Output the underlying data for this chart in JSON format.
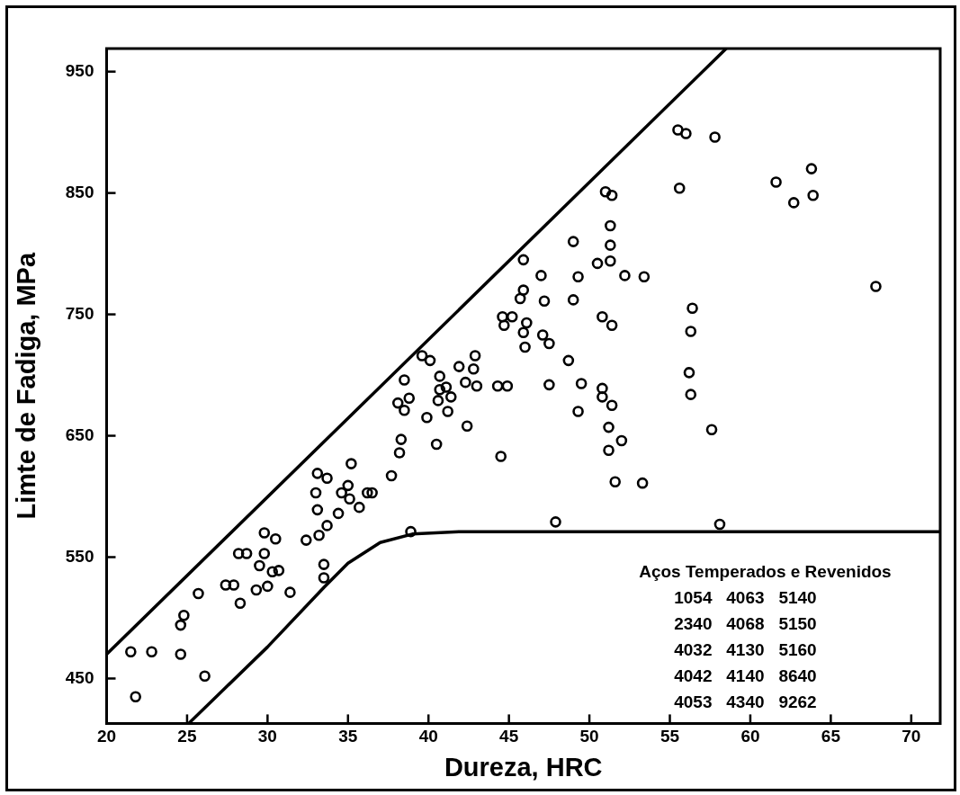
{
  "chart_data": {
    "type": "scatter",
    "xlabel": "Dureza, HRC",
    "ylabel": "Limte de Fadiga, MPa",
    "xlim": [
      20,
      71.8
    ],
    "xticks": [
      20,
      25,
      30,
      35,
      40,
      45,
      50,
      55,
      60,
      65,
      70
    ],
    "ylim": [
      413,
      969
    ],
    "yticks": [
      450,
      550,
      650,
      750,
      850,
      950
    ],
    "grid": false,
    "legend": false,
    "series": [
      {
        "type": "line",
        "color": "#000000",
        "marker": "none",
        "x": [
          20,
          58.5
        ],
        "values": [
          470,
          969
        ]
      },
      {
        "type": "line",
        "color": "#000000",
        "marker": "none",
        "x": [
          25.1,
          30,
          33.5,
          35,
          37,
          39,
          42,
          50,
          71.8
        ],
        "values": [
          413,
          476,
          525,
          545,
          562,
          569,
          571,
          571,
          571
        ]
      },
      {
        "type": "scatter",
        "color": "#000000",
        "marker": "circle",
        "x": [
          21.5,
          22.8,
          24.6,
          21.8,
          26.1,
          24.6,
          24.8,
          25.7,
          27.4,
          27.9,
          28.3,
          28.2,
          28.7,
          29.3,
          30.0,
          29.5,
          29.8,
          30.3,
          30.7,
          31.4,
          29.8,
          30.5,
          32.4,
          33.2,
          33.7,
          33.5,
          33.5,
          34.4,
          35.7,
          35.1,
          34.6,
          35.0,
          36.2,
          36.5,
          33.1,
          33.0,
          33.1,
          33.7,
          35.2,
          37.7,
          38.2,
          38.3,
          39.9,
          38.5,
          38.1,
          38.8,
          38.5,
          38.9,
          45.9,
          49.0,
          51.3,
          50.5,
          51.3,
          52.2,
          53.4,
          47.0,
          49.3,
          45.9,
          45.7,
          47.2,
          49.0,
          44.6,
          45.2,
          44.7,
          46.1,
          45.9,
          47.1,
          47.5,
          46.0,
          50.8,
          51.4,
          48.7,
          39.6,
          40.1,
          42.9,
          42.8,
          41.9,
          40.7,
          40.7,
          41.1,
          41.4,
          40.6,
          42.3,
          43.0,
          44.3,
          44.9,
          47.5,
          49.5,
          50.8,
          50.8,
          51.4,
          49.3,
          51.2,
          52.0,
          51.2,
          51.6,
          53.3,
          41.2,
          42.4,
          40.5,
          44.5,
          47.9,
          55.5,
          56.0,
          57.8,
          55.6,
          61.6,
          63.8,
          62.7,
          63.9,
          67.8,
          51.0,
          51.4,
          51.3,
          56.4,
          56.3,
          56.2,
          56.3,
          57.6,
          58.1
        ],
        "values": [
          472,
          472,
          470,
          435,
          452,
          494,
          502,
          520,
          527,
          527,
          512,
          553,
          553,
          523,
          526,
          543,
          553,
          538,
          539,
          521,
          570,
          565,
          564,
          568,
          576,
          544,
          533,
          586,
          591,
          598,
          603,
          609,
          603,
          603,
          589,
          603,
          619,
          615,
          627,
          617,
          636,
          647,
          665,
          671,
          677,
          681,
          696,
          571,
          795,
          810,
          807,
          792,
          794,
          782,
          781,
          782,
          781,
          770,
          763,
          761,
          762,
          748,
          748,
          741,
          743,
          735,
          733,
          726,
          723,
          748,
          741,
          712,
          716,
          712,
          716,
          705,
          707,
          699,
          688,
          690,
          682,
          679,
          694,
          691,
          691,
          691,
          692,
          693,
          689,
          682,
          675,
          670,
          657,
          646,
          638,
          612,
          611,
          670,
          658,
          643,
          633,
          579,
          902,
          899,
          896,
          854,
          859,
          870,
          842,
          848,
          773,
          851,
          848,
          823,
          755,
          736,
          702,
          684,
          655,
          577
        ]
      }
    ],
    "annotations": [
      "Aços Temperados e Revenidos",
      "1054   4063   5140",
      "2340   4068   5150",
      "4032   4130   5160",
      "4042   4140   8640",
      "4053   4340   9262"
    ]
  }
}
